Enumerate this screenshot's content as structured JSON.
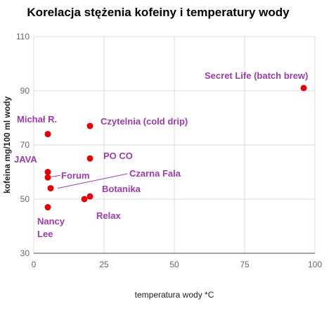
{
  "chart_data": {
    "type": "scatter",
    "title": "Korelacja stężenia kofeiny i temperatury wody",
    "xlabel": "temperatura wody *C",
    "ylabel": "kofeina mg/100 ml wody",
    "xlim": [
      0,
      100
    ],
    "ylim": [
      30,
      110
    ],
    "x_ticks": [
      0,
      25,
      50,
      75,
      100
    ],
    "y_ticks": [
      30,
      50,
      70,
      90,
      110
    ],
    "grid": true,
    "legend": "none",
    "point_color": "#e0000b",
    "label_color": "#9b3ca8",
    "points": [
      {
        "label": "Secret Life (batch brew)",
        "x": 96,
        "y": 91
      },
      {
        "label": "Michał R.",
        "x": 5,
        "y": 74
      },
      {
        "label": "Czytelnia (cold drip)",
        "x": 20,
        "y": 77
      },
      {
        "label": "PO CO",
        "x": 20,
        "y": 65
      },
      {
        "label": "JAVA",
        "x": 5,
        "y": 60
      },
      {
        "label": "Forum",
        "x": 5,
        "y": 58
      },
      {
        "label": "Czarna Fala",
        "x": 6,
        "y": 54
      },
      {
        "label": "Botanika",
        "x": 20,
        "y": 51
      },
      {
        "label": "Relax",
        "x": 18,
        "y": 50
      },
      {
        "label": "Nancy Lee",
        "x": 5,
        "y": 47
      }
    ]
  }
}
